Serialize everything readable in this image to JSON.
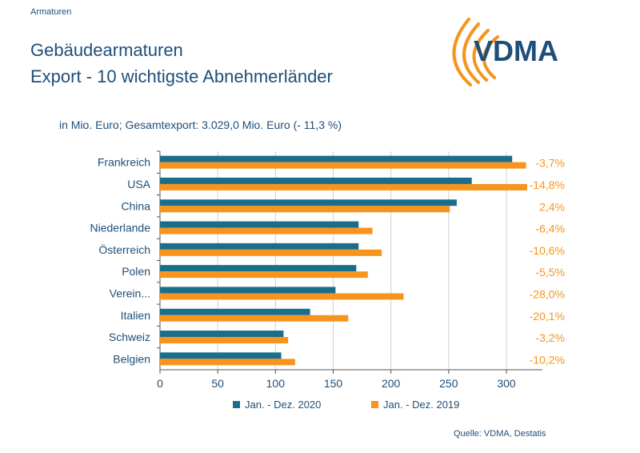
{
  "header": {
    "section": "Armaturen",
    "title_line1": "Gebäudearmaturen",
    "title_line2": "Export - 10 wichtigste Abnehmerländer"
  },
  "logo": {
    "text": "VDMA"
  },
  "subtitle": "in Mio. Euro; Gesamtexport: 3.029,0 Mio. Euro (- 11,3 %)",
  "legend": {
    "series_2020": "Jan. - Dez. 2020",
    "series_2019": "Jan. - Dez. 2019"
  },
  "source": "Quelle: VDMA, Destatis",
  "colors": {
    "series_2020": "#1a6e8a",
    "series_2019": "#f7941d",
    "text": "#1f4e79"
  },
  "chart_data": {
    "type": "bar",
    "orientation": "horizontal",
    "categories": [
      "Frankreich",
      "USA",
      "China",
      "Niederlande",
      "Österreich",
      "Polen",
      "Verein...",
      "Italien",
      "Schweiz",
      "Belgien"
    ],
    "series": [
      {
        "name": "Jan. - Dez. 2020",
        "values": [
          305,
          270,
          257,
          172,
          172,
          170,
          152,
          130,
          107,
          105
        ]
      },
      {
        "name": "Jan. - Dez. 2019",
        "values": [
          317,
          318,
          251,
          184,
          192,
          180,
          211,
          163,
          111,
          117
        ]
      }
    ],
    "changes": [
      "-3,7%",
      "-14,8%",
      "2,4%",
      "-6,4%",
      "-10,6%",
      "-5,5%",
      "-28,0%",
      "-20,1%",
      "-3,2%",
      "-10,2%"
    ],
    "xticks": [
      "0",
      "50",
      "100",
      "150",
      "200",
      "250",
      "300"
    ],
    "xlim": [
      0,
      330
    ],
    "legend_position": "bottom"
  }
}
